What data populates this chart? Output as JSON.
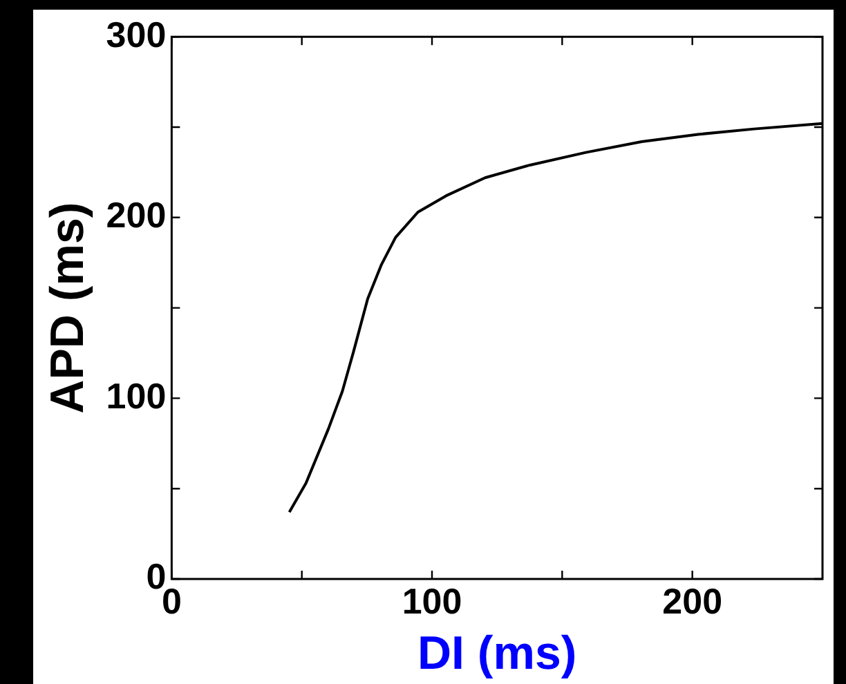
{
  "chart_data": {
    "type": "line",
    "xlabel": "DI (ms)",
    "ylabel": "APD (ms)",
    "xlim": [
      0,
      250
    ],
    "ylim": [
      0,
      300
    ],
    "xticks": [
      0,
      {
        "value": 50,
        "label": null
      },
      100,
      {
        "value": 150,
        "label": null
      },
      200
    ],
    "yticks": [
      0,
      {
        "value": 50,
        "label": null
      },
      100,
      {
        "value": 150,
        "label": null
      },
      200,
      {
        "value": 250,
        "label": null
      },
      300
    ],
    "grid": false,
    "legend": false,
    "marker": "none",
    "line_style": "solid",
    "series": [
      {
        "color": "#000000",
        "x": [
          45.2,
          51.6,
          60.2,
          65.6,
          69.9,
          75.3,
          80.6,
          86.0,
          94.6,
          105.4,
          120.4,
          137.6,
          159.1,
          180.6,
          202.2,
          223.7,
          250
        ],
        "values": [
          37,
          53,
          83,
          104,
          126,
          155,
          174,
          189,
          203,
          212,
          222,
          229,
          236,
          242,
          246,
          249,
          252
        ]
      }
    ]
  }
}
